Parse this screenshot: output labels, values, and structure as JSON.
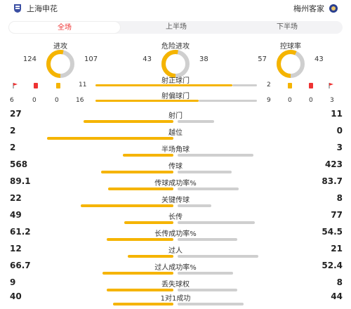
{
  "header": {
    "home_team": "上海申花",
    "away_team": "梅州客家"
  },
  "tabs": [
    {
      "label": "全场",
      "active": true
    },
    {
      "label": "上半场",
      "active": false
    },
    {
      "label": "下半场",
      "active": false
    }
  ],
  "donuts": [
    {
      "title": "进攻",
      "home": "124",
      "away": "107",
      "home_value": 124,
      "away_value": 107
    },
    {
      "title": "危险进攻",
      "home": "43",
      "away": "38",
      "home_value": 43,
      "away_value": 38
    },
    {
      "title": "控球率",
      "home": "57",
      "away": "43",
      "home_value": 57,
      "away_value": 43
    }
  ],
  "shots": {
    "on_target": {
      "label": "射正球门",
      "home": "11",
      "away": "2",
      "home_value": 11,
      "away_value": 2
    },
    "off_target": {
      "label": "射偏球门",
      "home": "16",
      "away": "9",
      "home_value": 16,
      "away_value": 9
    },
    "home_counts": [
      "6",
      "0",
      "0"
    ],
    "away_counts": [
      "0",
      "0",
      "3"
    ]
  },
  "stats": [
    {
      "label": "射门",
      "home": "27",
      "away": "11",
      "home_value": 27,
      "away_value": 11
    },
    {
      "label": "越位",
      "home": "2",
      "away": "0",
      "home_value": 2,
      "away_value": 0
    },
    {
      "label": "半场角球",
      "home": "2",
      "away": "3",
      "home_value": 2,
      "away_value": 3
    },
    {
      "label": "传球",
      "home": "568",
      "away": "423",
      "home_value": 568,
      "away_value": 423
    },
    {
      "label": "传球成功率%",
      "home": "89.1",
      "away": "83.7",
      "home_value": 89.1,
      "away_value": 83.7
    },
    {
      "label": "关键传球",
      "home": "22",
      "away": "8",
      "home_value": 22,
      "away_value": 8
    },
    {
      "label": "长传",
      "home": "49",
      "away": "77",
      "home_value": 49,
      "away_value": 77
    },
    {
      "label": "长传成功率%",
      "home": "61.2",
      "away": "54.5",
      "home_value": 61.2,
      "away_value": 54.5
    },
    {
      "label": "过人",
      "home": "12",
      "away": "21",
      "home_value": 12,
      "away_value": 21
    },
    {
      "label": "过人成功率%",
      "home": "66.7",
      "away": "52.4",
      "home_value": 66.7,
      "away_value": 52.4
    },
    {
      "label": "丢失球权",
      "home": "9",
      "away": "8",
      "home_value": 9,
      "away_value": 8
    },
    {
      "label": "1对1成功",
      "home": "40",
      "away": "44",
      "home_value": 40,
      "away_value": 44
    }
  ],
  "colors": {
    "home": "#f5b400",
    "away": "#cfcfcf",
    "accent": "#e33333"
  }
}
